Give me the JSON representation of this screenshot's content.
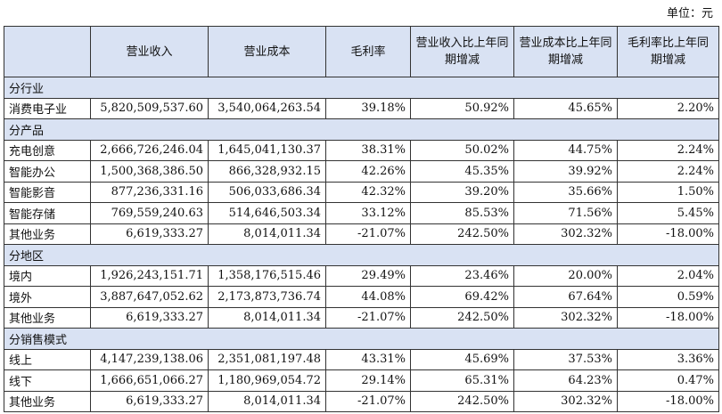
{
  "unit_label": "单位：元",
  "headers": [
    "",
    "营业收入",
    "营业成本",
    "毛利率",
    "营业收入比上年同期增减",
    "营业成本比上年同期增减",
    "毛利率比上年同期增减"
  ],
  "sections": [
    {
      "title": "分行业",
      "rows": [
        [
          "消费电子业",
          "5,820,509,537.60",
          "3,540,064,263.54",
          "39.18%",
          "50.92%",
          "45.65%",
          "2.20%"
        ]
      ]
    },
    {
      "title": "分产品",
      "rows": [
        [
          "充电创意",
          "2,666,726,246.04",
          "1,645,041,130.37",
          "38.31%",
          "50.02%",
          "44.75%",
          "2.24%"
        ],
        [
          "智能办公",
          "1,500,368,386.50",
          "866,328,932.15",
          "42.26%",
          "45.35%",
          "39.92%",
          "2.24%"
        ],
        [
          "智能影音",
          "877,236,331.16",
          "506,033,686.34",
          "42.32%",
          "39.20%",
          "35.66%",
          "1.50%"
        ],
        [
          "智能存储",
          "769,559,240.63",
          "514,646,503.34",
          "33.12%",
          "85.53%",
          "71.56%",
          "5.45%"
        ],
        [
          "其他业务",
          "6,619,333.27",
          "8,014,011.34",
          "-21.07%",
          "242.50%",
          "302.32%",
          "-18.00%"
        ]
      ]
    },
    {
      "title": "分地区",
      "rows": [
        [
          "境内",
          "1,926,243,151.71",
          "1,358,176,515.46",
          "29.49%",
          "23.46%",
          "20.00%",
          "2.04%"
        ],
        [
          "境外",
          "3,887,647,052.62",
          "2,173,873,736.74",
          "44.08%",
          "69.42%",
          "67.64%",
          "0.59%"
        ],
        [
          "其他业务",
          "6,619,333.27",
          "8,014,011.34",
          "-21.07%",
          "242.50%",
          "302.32%",
          "-18.00%"
        ]
      ]
    },
    {
      "title": "分销售模式",
      "rows": [
        [
          "线上",
          "4,147,239,138.06",
          "2,351,081,197.48",
          "43.31%",
          "45.69%",
          "37.53%",
          "3.36%"
        ],
        [
          "线下",
          "1,666,651,066.27",
          "1,180,969,054.72",
          "29.14%",
          "65.31%",
          "64.23%",
          "0.47%"
        ],
        [
          "其他业务",
          "6,619,333.27",
          "8,014,011.34",
          "-21.07%",
          "242.50%",
          "302.32%",
          "-18.00%"
        ]
      ]
    }
  ]
}
